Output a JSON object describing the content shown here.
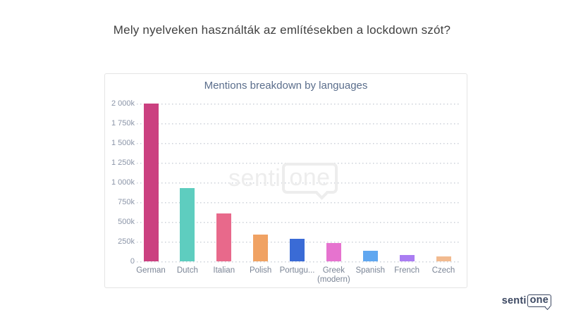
{
  "page": {
    "title": "Mely nyelveken használták az említésekben a lockdown szót?"
  },
  "watermark": {
    "part1": "senti",
    "part2": "one"
  },
  "footer_logo": {
    "part1": "senti",
    "part2": "one"
  },
  "chart_data": {
    "type": "bar",
    "title": "Mentions breakdown by languages",
    "categories": [
      "German",
      "Dutch",
      "Italian",
      "Polish",
      "Portugu...",
      "Greek\n(modern)",
      "Spanish",
      "French",
      "Czech"
    ],
    "values": [
      2000000,
      925000,
      605000,
      340000,
      290000,
      235000,
      130000,
      80000,
      65000
    ],
    "bar_colors": [
      "#cb4080",
      "#5ecdbf",
      "#e8698b",
      "#f0a263",
      "#3a6bd6",
      "#e673cf",
      "#60a7f0",
      "#aa7df2",
      "#f2ba8f"
    ],
    "ylim": [
      0,
      2000000
    ],
    "ytick_labels": [
      "2 000k",
      "1 750k",
      "1 500k",
      "1 250k",
      "1 000k",
      "750k",
      "500k",
      "250k",
      "0"
    ],
    "xlabel": "",
    "ylabel": "",
    "grid": "horizontal-dotted",
    "legend": "none"
  }
}
